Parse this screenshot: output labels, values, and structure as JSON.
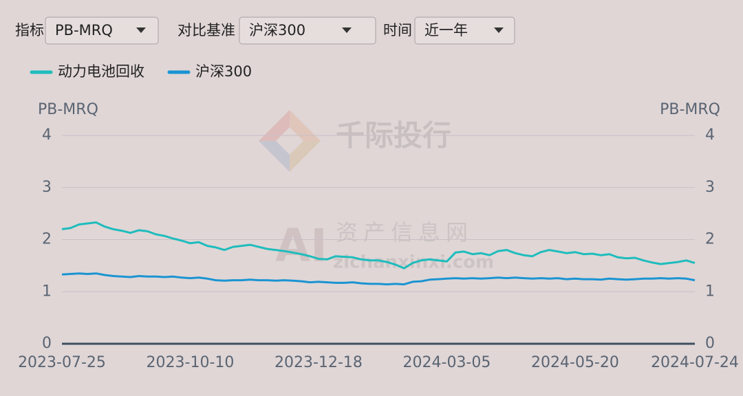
{
  "controls": [
    {
      "label": "指标",
      "value": "PB-MRQ"
    },
    {
      "label": "对比基准",
      "value": "沪深300"
    },
    {
      "label": "时间",
      "value": "近一年"
    }
  ],
  "watermark": [
    "千际投行",
    "资产信息网",
    "zichanxinxi.com",
    "AI"
  ],
  "chart_data": {
    "type": "line",
    "ylabel": "PB-MRQ",
    "y2label": "PB-MRQ",
    "ylim": [
      0,
      4
    ],
    "yticks": [
      0,
      1,
      2,
      3,
      4
    ],
    "y2lim": [
      0,
      4
    ],
    "y2ticks": [
      0,
      1,
      2,
      3,
      4
    ],
    "grid": true,
    "legend": "top-left",
    "categories": [
      "2023-07-25",
      null,
      null,
      null,
      null,
      null,
      null,
      null,
      null,
      null,
      null,
      null,
      null,
      null,
      null,
      "2023-10-10",
      null,
      null,
      null,
      null,
      null,
      null,
      null,
      null,
      null,
      null,
      null,
      null,
      null,
      null,
      "2023-12-18",
      null,
      null,
      null,
      null,
      null,
      null,
      null,
      null,
      null,
      null,
      null,
      null,
      null,
      null,
      "2024-03-05",
      null,
      null,
      null,
      null,
      null,
      null,
      null,
      null,
      null,
      null,
      null,
      null,
      null,
      null,
      "2024-05-20",
      null,
      null,
      null,
      null,
      null,
      null,
      null,
      null,
      null,
      null,
      null,
      null,
      null,
      "2024-07-24"
    ],
    "series": [
      {
        "name": "动力电池回收",
        "color": "#1fbcbc",
        "values": [
          2.2,
          2.22,
          2.29,
          2.31,
          2.33,
          2.25,
          2.2,
          2.17,
          2.13,
          2.18,
          2.16,
          2.1,
          2.07,
          2.02,
          1.98,
          1.93,
          1.95,
          1.88,
          1.85,
          1.8,
          1.86,
          1.88,
          1.9,
          1.86,
          1.82,
          1.8,
          1.78,
          1.75,
          1.72,
          1.68,
          1.63,
          1.62,
          1.68,
          1.67,
          1.66,
          1.62,
          1.6,
          1.6,
          1.57,
          1.52,
          1.45,
          1.55,
          1.6,
          1.62,
          1.6,
          1.58,
          1.75,
          1.77,
          1.72,
          1.74,
          1.7,
          1.78,
          1.8,
          1.74,
          1.7,
          1.68,
          1.76,
          1.8,
          1.77,
          1.74,
          1.76,
          1.72,
          1.73,
          1.7,
          1.72,
          1.66,
          1.64,
          1.65,
          1.6,
          1.56,
          1.53,
          1.55,
          1.57,
          1.6,
          1.55
        ]
      },
      {
        "name": "沪深300",
        "color": "#1a94d2",
        "values": [
          1.33,
          1.34,
          1.35,
          1.34,
          1.35,
          1.32,
          1.3,
          1.29,
          1.28,
          1.3,
          1.29,
          1.29,
          1.28,
          1.29,
          1.27,
          1.26,
          1.27,
          1.25,
          1.22,
          1.21,
          1.22,
          1.22,
          1.23,
          1.22,
          1.22,
          1.21,
          1.22,
          1.21,
          1.2,
          1.18,
          1.19,
          1.18,
          1.17,
          1.17,
          1.18,
          1.16,
          1.15,
          1.15,
          1.14,
          1.15,
          1.14,
          1.19,
          1.2,
          1.23,
          1.24,
          1.25,
          1.26,
          1.25,
          1.26,
          1.25,
          1.26,
          1.27,
          1.26,
          1.27,
          1.26,
          1.25,
          1.26,
          1.25,
          1.26,
          1.24,
          1.25,
          1.24,
          1.24,
          1.23,
          1.25,
          1.24,
          1.23,
          1.24,
          1.25,
          1.25,
          1.26,
          1.25,
          1.26,
          1.25,
          1.22
        ]
      }
    ]
  }
}
